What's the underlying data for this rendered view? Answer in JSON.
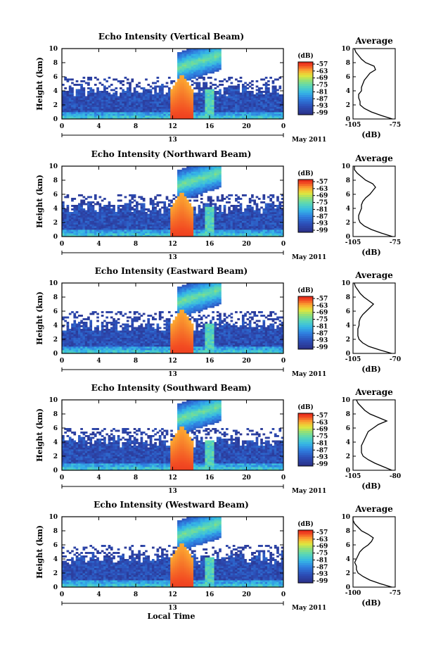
{
  "figure": {
    "xlabel": "Local Time",
    "date_label": "May 2011",
    "day_label": "13",
    "colorbar_unit": "(dB)",
    "profile_title": "Average",
    "profile_xlabel": "(dB)",
    "ylabel": "Height (km)"
  },
  "chart_data": [
    {
      "type": "heatmap",
      "title": "Echo Intensity (Vertical Beam)",
      "xlabel": "",
      "ylabel": "Height (km)",
      "xlim": [
        0,
        24
      ],
      "ylim": [
        0,
        10
      ],
      "xticks": [
        "0",
        "4",
        "8",
        "12",
        "16",
        "20",
        "0"
      ],
      "yticks": [
        "0",
        "2",
        "4",
        "6",
        "8",
        "10"
      ],
      "colorbar": {
        "label": "(dB)",
        "ticks": [
          "-57",
          "-63",
          "-69",
          "-75",
          "-81",
          "-87",
          "-93",
          "-99"
        ]
      },
      "profile": {
        "title": "Average",
        "xlabel": "(dB)",
        "xlim": [
          -105,
          -75
        ],
        "xticks": [
          "-105",
          "-75"
        ],
        "heights": [
          0,
          0.5,
          1,
          1.5,
          2,
          2.5,
          3,
          3.5,
          4,
          4.5,
          5,
          5.5,
          6,
          6.5,
          7,
          7.5,
          8,
          8.5,
          9,
          9.5,
          10
        ],
        "values": [
          -77,
          -85,
          -92,
          -97,
          -100,
          -100,
          -101,
          -101,
          -99,
          -99,
          -98,
          -97,
          -95,
          -93,
          -89,
          -90,
          -96,
          -99,
          -101,
          -103,
          -104
        ]
      }
    },
    {
      "type": "heatmap",
      "title": "Echo Intensity (Northward Beam)",
      "xlabel": "",
      "ylabel": "Height (km)",
      "xlim": [
        0,
        24
      ],
      "ylim": [
        0,
        10
      ],
      "xticks": [
        "0",
        "4",
        "8",
        "12",
        "16",
        "20",
        "0"
      ],
      "yticks": [
        "0",
        "2",
        "4",
        "6",
        "8",
        "10"
      ],
      "colorbar": {
        "label": "(dB)",
        "ticks": [
          "-57",
          "-63",
          "-69",
          "-75",
          "-81",
          "-87",
          "-93",
          "-99"
        ]
      },
      "profile": {
        "title": "Average",
        "xlabel": "(dB)",
        "xlim": [
          -105,
          -75
        ],
        "xticks": [
          "-105",
          "-75"
        ],
        "heights": [
          0,
          0.5,
          1,
          1.5,
          2,
          2.5,
          3,
          3.5,
          4,
          4.5,
          5,
          5.5,
          6,
          6.5,
          7,
          7.5,
          8,
          8.5,
          9,
          9.5,
          10
        ],
        "values": [
          -77,
          -85,
          -92,
          -97,
          -100,
          -101,
          -101,
          -100,
          -99,
          -99,
          -98,
          -96,
          -93,
          -91,
          -89,
          -91,
          -96,
          -99,
          -102,
          -104,
          -104
        ]
      }
    },
    {
      "type": "heatmap",
      "title": "Echo Intensity (Eastward Beam)",
      "xlabel": "",
      "ylabel": "Height (km)",
      "xlim": [
        0,
        24
      ],
      "ylim": [
        0,
        10
      ],
      "xticks": [
        "0",
        "4",
        "8",
        "12",
        "16",
        "20",
        "0"
      ],
      "yticks": [
        "0",
        "2",
        "4",
        "6",
        "8",
        "10"
      ],
      "colorbar": {
        "label": "(dB)",
        "ticks": [
          "-57",
          "-63",
          "-69",
          "-75",
          "-81",
          "-87",
          "-93",
          "-99"
        ]
      },
      "profile": {
        "title": "Average",
        "xlabel": "(dB)",
        "xlim": [
          -105,
          -70
        ],
        "xticks": [
          "-105",
          "-70"
        ],
        "heights": [
          0,
          0.5,
          1,
          1.5,
          2,
          2.5,
          3,
          3.5,
          4,
          4.5,
          5,
          5.5,
          6,
          6.5,
          7,
          7.5,
          8,
          8.5,
          9,
          9.5,
          10
        ],
        "values": [
          -73,
          -83,
          -92,
          -97,
          -100,
          -101,
          -101,
          -101,
          -100,
          -100,
          -99,
          -97,
          -94,
          -91,
          -88,
          -92,
          -96,
          -99,
          -101,
          -103,
          -104
        ]
      }
    },
    {
      "type": "heatmap",
      "title": "Echo Intensity (Southward Beam)",
      "xlabel": "",
      "ylabel": "Height (km)",
      "xlim": [
        0,
        24
      ],
      "ylim": [
        0,
        10
      ],
      "xticks": [
        "0",
        "4",
        "8",
        "12",
        "16",
        "20",
        "0"
      ],
      "yticks": [
        "0",
        "2",
        "4",
        "6",
        "8",
        "10"
      ],
      "colorbar": {
        "label": "(dB)",
        "ticks": [
          "-57",
          "-63",
          "-69",
          "-75",
          "-81",
          "-87",
          "-93",
          "-99"
        ]
      },
      "profile": {
        "title": "Average",
        "xlabel": "(dB)",
        "xlim": [
          -105,
          -80
        ],
        "xticks": [
          "-105",
          "-80"
        ],
        "heights": [
          0,
          0.5,
          1,
          1.5,
          2,
          2.5,
          3,
          3.5,
          4,
          4.5,
          5,
          5.5,
          6,
          6.5,
          7,
          7.5,
          8,
          8.5,
          9,
          9.5,
          10
        ],
        "values": [
          -82,
          -87,
          -92,
          -96,
          -99,
          -100,
          -100,
          -100,
          -99,
          -98,
          -97,
          -96,
          -93,
          -90,
          -85,
          -90,
          -95,
          -98,
          -100,
          -102,
          -103
        ]
      }
    },
    {
      "type": "heatmap",
      "title": "Echo Intensity (Westward Beam)",
      "xlabel": "Local Time",
      "ylabel": "Height (km)",
      "xlim": [
        0,
        24
      ],
      "ylim": [
        0,
        10
      ],
      "xticks": [
        "0",
        "4",
        "8",
        "12",
        "16",
        "20",
        "0"
      ],
      "yticks": [
        "0",
        "2",
        "4",
        "6",
        "8",
        "10"
      ],
      "colorbar": {
        "label": "(dB)",
        "ticks": [
          "-57",
          "-63",
          "-69",
          "-75",
          "-81",
          "-87",
          "-93",
          "-99"
        ]
      },
      "profile": {
        "title": "Average",
        "xlabel": "(dB)",
        "xlim": [
          -100,
          -75
        ],
        "xticks": [
          "-100",
          "-75"
        ],
        "heights": [
          0,
          0.5,
          1,
          1.5,
          2,
          2.5,
          3,
          3.5,
          4,
          4.5,
          5,
          5.5,
          6,
          6.5,
          7,
          7.5,
          8,
          8.5,
          9,
          9.5,
          10
        ],
        "values": [
          -77,
          -84,
          -90,
          -94,
          -97,
          -98,
          -98,
          -99,
          -98,
          -97,
          -96,
          -94,
          -91,
          -89,
          -88,
          -91,
          -95,
          -97,
          -99,
          -100,
          -100
        ]
      }
    }
  ]
}
